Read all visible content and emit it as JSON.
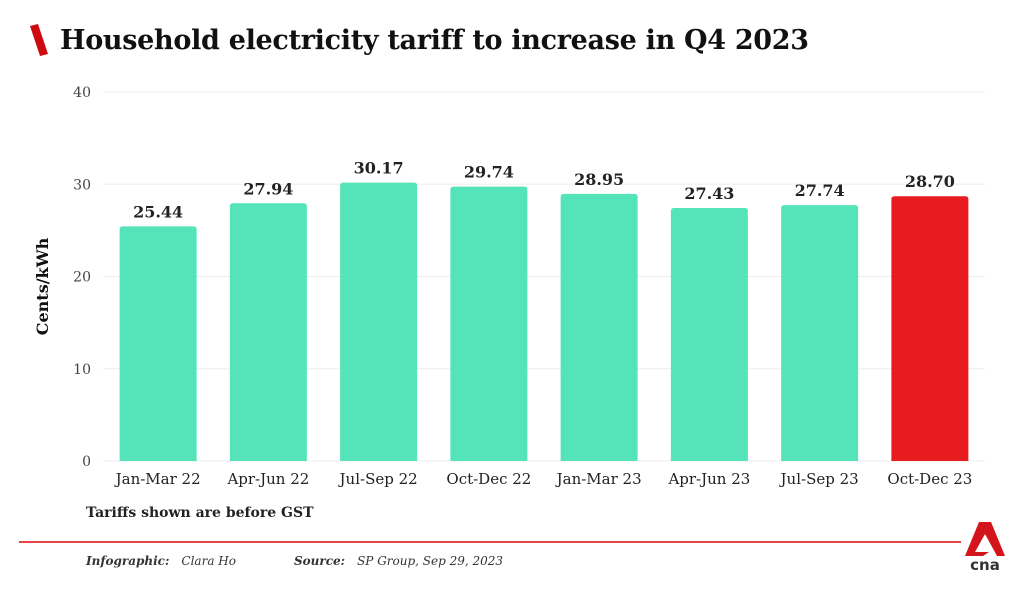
{
  "header": {
    "title": "Household electricity tariff to increase in Q4 2023"
  },
  "footer": {
    "note": "Tariffs shown are before GST",
    "infographic_label": "Infographic:",
    "infographic_value": "Clara Ho",
    "source_label": "Source:",
    "source_value": "SP Group, Sep 29, 2023",
    "logo_text": "cna"
  },
  "colors": {
    "bar": "#55e3b9",
    "highlight": "#e81c1e",
    "accent": "#cc0a10",
    "rule": "#e8454a",
    "grid": "#eeeeee"
  },
  "chart_data": {
    "type": "bar",
    "title": "Household electricity tariff to increase in Q4 2023",
    "xlabel": "",
    "ylabel": "Cents/kWh",
    "ylim": [
      0,
      40
    ],
    "yticks": [
      0,
      10,
      20,
      30,
      40
    ],
    "grid": true,
    "categories": [
      "Jan-Mar 22",
      "Apr-Jun 22",
      "Jul-Sep 22",
      "Oct-Dec 22",
      "Jan-Mar 23",
      "Apr-Jun 23",
      "Jul-Sep 23",
      "Oct-Dec 23"
    ],
    "values": [
      25.44,
      27.94,
      30.17,
      29.74,
      28.95,
      27.43,
      27.74,
      28.7
    ],
    "data_labels": [
      "25.44",
      "27.94",
      "30.17",
      "29.74",
      "28.95",
      "27.43",
      "27.74",
      "28.70"
    ],
    "highlight_index": 7
  }
}
